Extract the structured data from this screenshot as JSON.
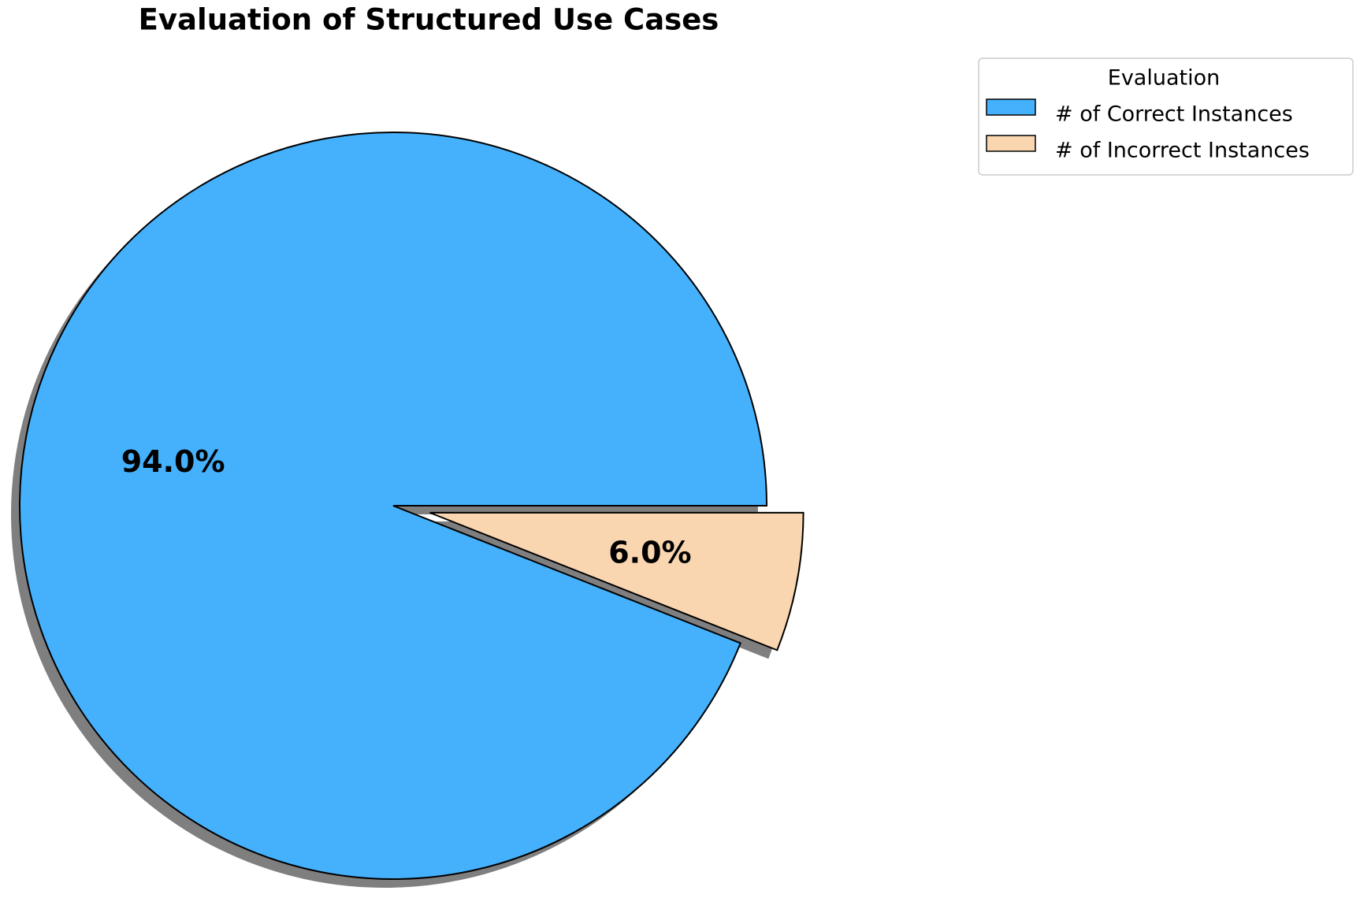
{
  "chart_data": {
    "type": "pie",
    "title": "Evaluation of Structured Use Cases",
    "categories": [
      "# of Correct Instances",
      "# of Incorrect Instances"
    ],
    "values": [
      94,
      6
    ],
    "value_labels": [
      "94.0%",
      "6.0%"
    ],
    "colors": [
      "#45b1fc",
      "#f9d5b0"
    ],
    "explode": [
      0,
      0.1
    ],
    "shadow": true,
    "legend_title": "Evaluation",
    "legend": "upper right"
  }
}
